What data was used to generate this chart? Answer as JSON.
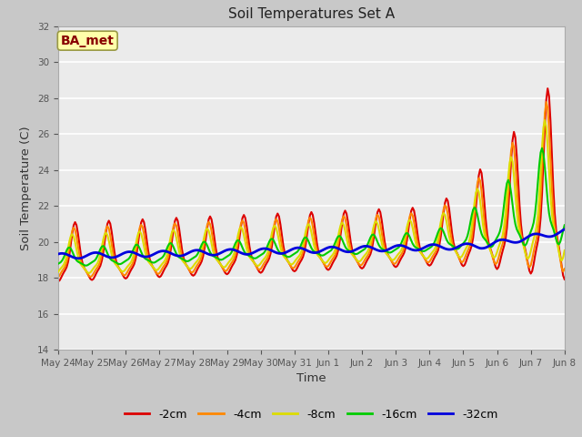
{
  "title": "Soil Temperatures Set A",
  "xlabel": "Time",
  "ylabel": "Soil Temperature (C)",
  "ylim": [
    14,
    32
  ],
  "yticks": [
    14,
    16,
    18,
    20,
    22,
    24,
    26,
    28,
    30,
    32
  ],
  "annotation": "BA_met",
  "fig_facecolor": "#c8c8c8",
  "plot_bg": "#ebebeb",
  "series_colors": [
    "#dd0000",
    "#ff8800",
    "#dddd00",
    "#00cc00",
    "#0000dd"
  ],
  "series_labels": [
    "-2cm",
    "-4cm",
    "-8cm",
    "-16cm",
    "-32cm"
  ],
  "x_labels": [
    "May 24",
    "May 25",
    "May 26",
    "May 27",
    "May 28",
    "May 29",
    "May 30",
    "May 31",
    "Jun 1",
    "Jun 2",
    "Jun 3",
    "Jun 4",
    "Jun 5",
    "Jun 6",
    "Jun 7",
    "Jun 8"
  ]
}
